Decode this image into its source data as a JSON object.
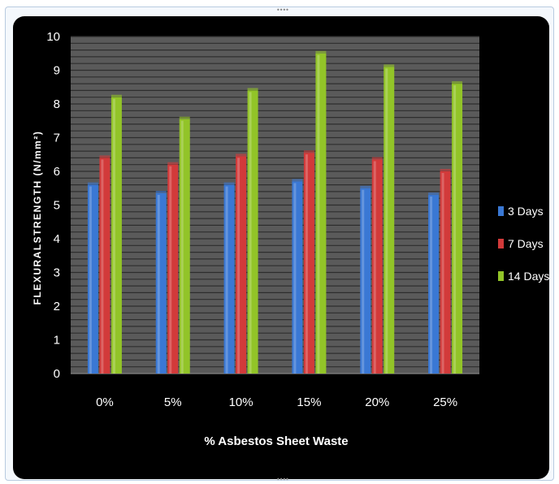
{
  "chart_data": {
    "type": "bar",
    "categories": [
      "0%",
      "5%",
      "10%",
      "15%",
      "20%",
      "25%"
    ],
    "series": [
      {
        "name": "3 Days",
        "values": [
          5.6,
          5.35,
          5.6,
          5.7,
          5.5,
          5.3
        ],
        "color": "#3a78d4"
      },
      {
        "name": "7 Days",
        "values": [
          6.4,
          6.2,
          6.45,
          6.55,
          6.35,
          6.0
        ],
        "color": "#d23a3a"
      },
      {
        "name": "14 Days",
        "values": [
          8.2,
          7.55,
          8.4,
          9.5,
          9.1,
          8.6
        ],
        "color": "#92c428"
      }
    ],
    "title": "",
    "xlabel": "% Asbestos Sheet Waste",
    "ylabel": "FLEXURALSTRENGTH (N/mm²)",
    "ylim": [
      0,
      10
    ],
    "yticks": [
      "0",
      "1",
      "2",
      "3",
      "4",
      "5",
      "6",
      "7",
      "8",
      "9",
      "10"
    ],
    "grid": true,
    "legend_position": "right",
    "plot_background": "#5a5a5a",
    "chart_background": "#000000"
  }
}
